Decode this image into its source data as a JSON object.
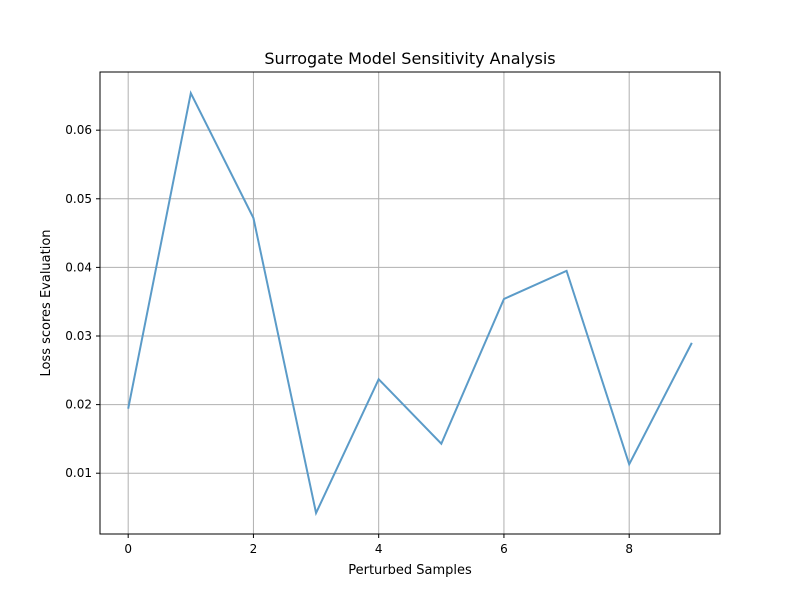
{
  "chart_data": {
    "type": "line",
    "title": "Surrogate Model Sensitivity Analysis",
    "xlabel": "Perturbed Samples",
    "ylabel": "Loss scores Evaluation",
    "x": [
      0,
      1,
      2,
      3,
      4,
      5,
      6,
      7,
      8,
      9
    ],
    "series": [
      {
        "values": [
          0.0194,
          0.0654,
          0.0472,
          0.0042,
          0.0237,
          0.0143,
          0.0354,
          0.0395,
          0.0113,
          0.029
        ],
        "color": "#5b9bc8"
      }
    ],
    "xticks": [
      "0",
      "2",
      "4",
      "6",
      "8"
    ],
    "xtick_values": [
      0,
      2,
      4,
      6,
      8
    ],
    "yticks": [
      "0.01",
      "0.02",
      "0.03",
      "0.04",
      "0.05",
      "0.06"
    ],
    "ytick_values": [
      0.01,
      0.02,
      0.03,
      0.04,
      0.05,
      0.06
    ],
    "xlim": [
      -0.45,
      9.45
    ],
    "ylim": [
      0.00114,
      0.06848
    ],
    "grid": true,
    "legend": "none"
  }
}
